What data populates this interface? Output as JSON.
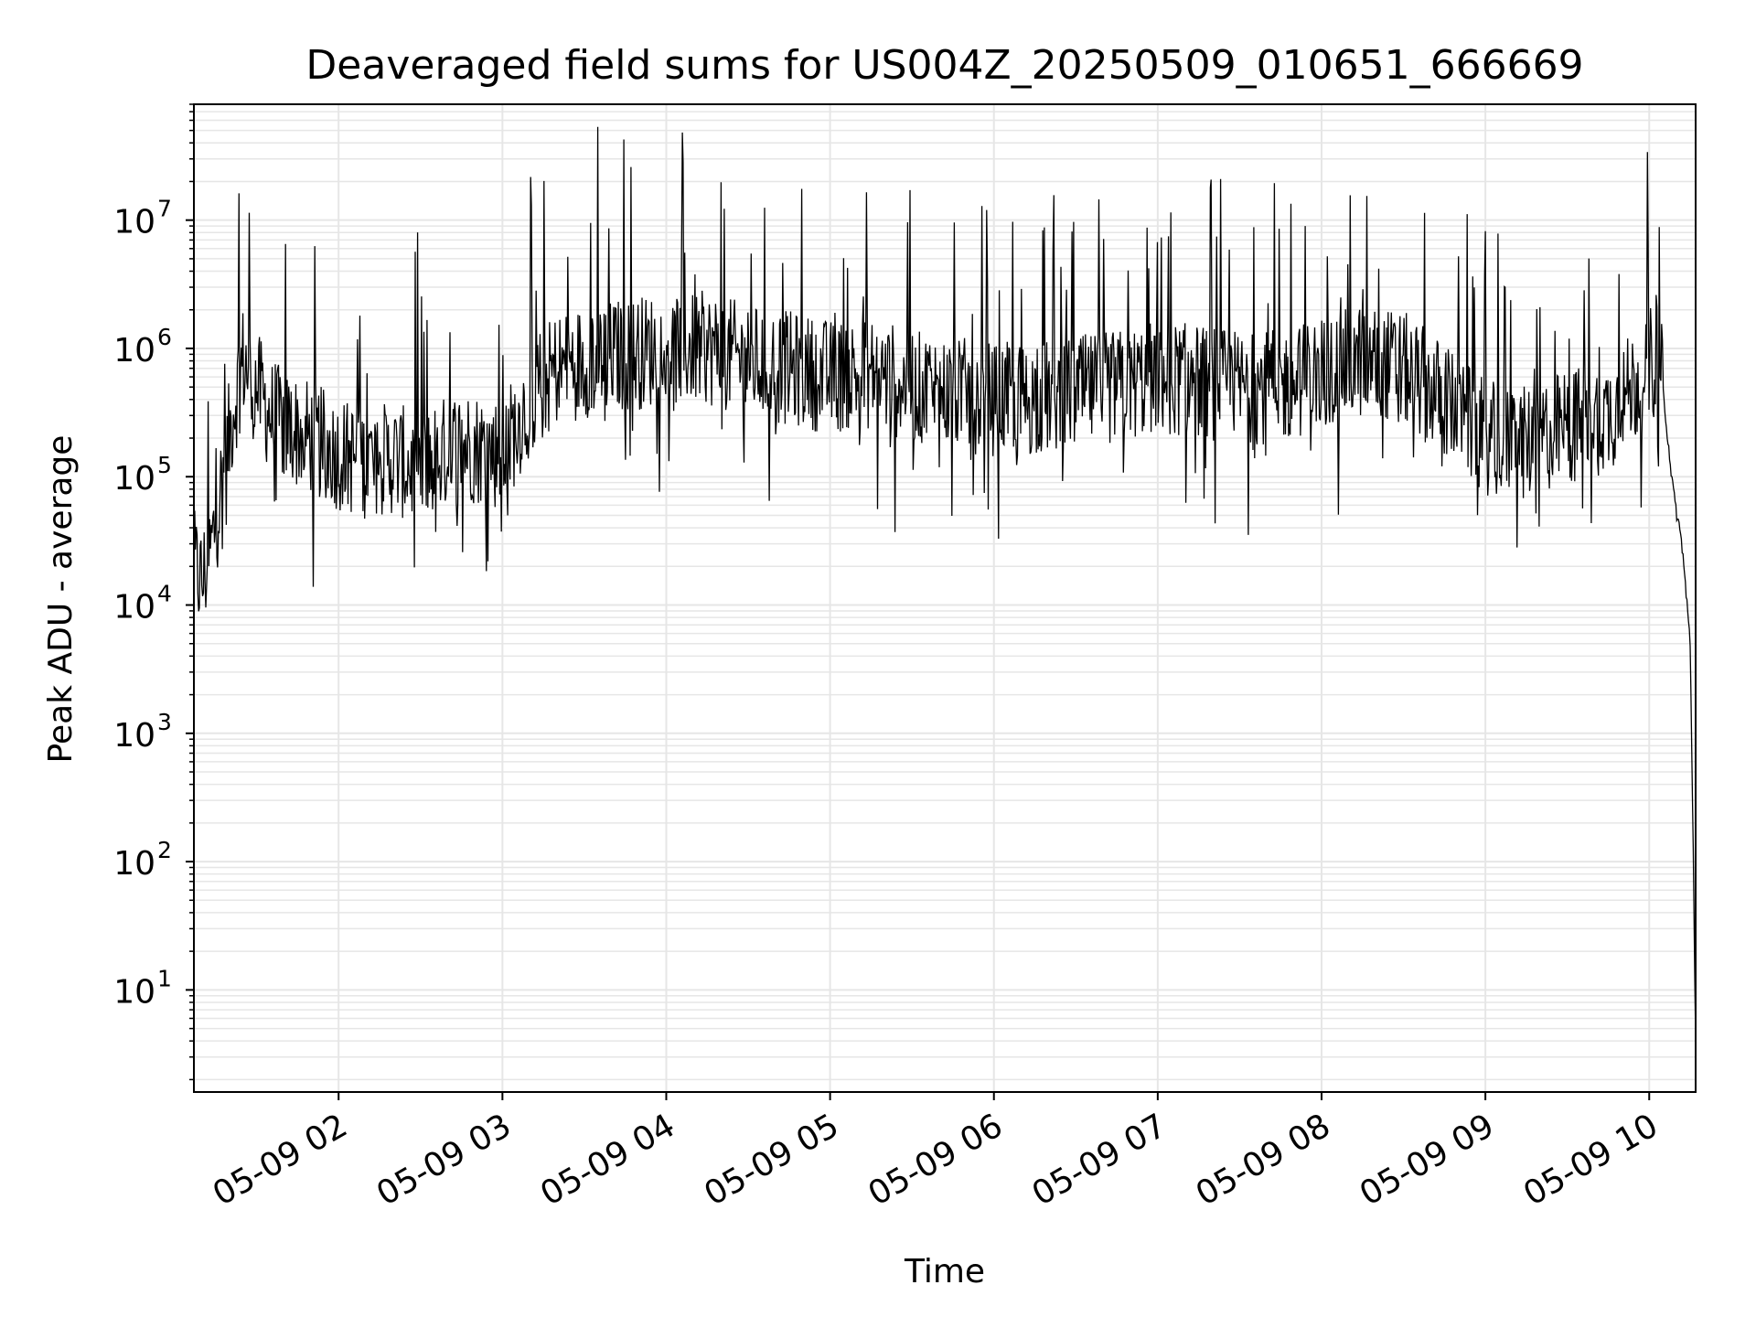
{
  "chart_data": {
    "type": "line",
    "title": "Deaveraged field sums for US004Z_20250509_010651_666669",
    "xlabel": "Time",
    "ylabel": "Peak ADU - average",
    "yscale": "log",
    "ylim": [
      1.6,
      80000000
    ],
    "xlim": [
      "2025-05-09 01:07",
      "2025-05-09 10:17"
    ],
    "grid": {
      "major": true,
      "minor": true,
      "color": "#e6e6e6"
    },
    "line_color": "#000000",
    "x_ticks": [
      {
        "label": "05-09 02",
        "time": "2025-05-09 02:00"
      },
      {
        "label": "05-09 03",
        "time": "2025-05-09 03:00"
      },
      {
        "label": "05-09 04",
        "time": "2025-05-09 04:00"
      },
      {
        "label": "05-09 05",
        "time": "2025-05-09 05:00"
      },
      {
        "label": "05-09 06",
        "time": "2025-05-09 06:00"
      },
      {
        "label": "05-09 07",
        "time": "2025-05-09 07:00"
      },
      {
        "label": "05-09 08",
        "time": "2025-05-09 08:00"
      },
      {
        "label": "05-09 09",
        "time": "2025-05-09 09:00"
      },
      {
        "label": "05-09 10",
        "time": "2025-05-09 10:00"
      }
    ],
    "y_ticks": [
      {
        "base": "10",
        "exp": "1",
        "value": 10
      },
      {
        "base": "10",
        "exp": "2",
        "value": 100
      },
      {
        "base": "10",
        "exp": "3",
        "value": 1000
      },
      {
        "base": "10",
        "exp": "4",
        "value": 10000
      },
      {
        "base": "10",
        "exp": "5",
        "value": 100000
      },
      {
        "base": "10",
        "exp": "6",
        "value": 1000000
      },
      {
        "base": "10",
        "exp": "7",
        "value": 10000000
      }
    ],
    "series": [
      {
        "x": [
          "2025-05-09 01:07",
          "2025-05-09 01:10",
          "2025-05-09 01:13",
          "2025-05-09 01:16",
          "2025-05-09 01:19",
          "2025-05-09 01:22",
          "2025-05-09 01:25",
          "2025-05-09 01:30",
          "2025-05-09 01:35",
          "2025-05-09 01:40",
          "2025-05-09 01:50",
          "2025-05-09 02:00",
          "2025-05-09 02:10",
          "2025-05-09 02:20",
          "2025-05-09 02:30",
          "2025-05-09 02:38",
          "2025-05-09 02:45",
          "2025-05-09 02:55",
          "2025-05-09 03:00",
          "2025-05-09 03:10",
          "2025-05-09 03:20",
          "2025-05-09 03:30",
          "2025-05-09 03:45",
          "2025-05-09 04:00",
          "2025-05-09 04:15",
          "2025-05-09 04:30",
          "2025-05-09 04:45",
          "2025-05-09 05:00",
          "2025-05-09 05:15",
          "2025-05-09 05:30",
          "2025-05-09 05:45",
          "2025-05-09 06:00",
          "2025-05-09 06:15",
          "2025-05-09 06:30",
          "2025-05-09 06:45",
          "2025-05-09 07:00",
          "2025-05-09 07:15",
          "2025-05-09 07:30",
          "2025-05-09 07:45",
          "2025-05-09 08:00",
          "2025-05-09 08:15",
          "2025-05-09 08:30",
          "2025-05-09 08:45",
          "2025-05-09 09:00",
          "2025-05-09 09:15",
          "2025-05-09 09:30",
          "2025-05-09 09:45",
          "2025-05-09 10:00",
          "2025-05-09 10:03",
          "2025-05-09 10:06",
          "2025-05-09 10:09",
          "2025-05-09 10:12",
          "2025-05-09 10:15",
          "2025-05-09 10:16",
          "2025-05-09 10:17"
        ],
        "y": [
          20000,
          15000,
          25000,
          60000,
          150000,
          400000,
          800000,
          500000,
          300000,
          250000,
          200000,
          150000,
          130000,
          140000,
          110000,
          150000,
          180000,
          160000,
          150000,
          400000,
          700000,
          800000,
          900000,
          1000000,
          1000000,
          800000,
          700000,
          600000,
          650000,
          500000,
          450000,
          400000,
          400000,
          450000,
          500000,
          600000,
          550000,
          500000,
          500000,
          650000,
          800000,
          700000,
          400000,
          200000,
          180000,
          250000,
          300000,
          700000,
          1100000,
          300000,
          70000,
          30000,
          5000,
          200,
          4
        ]
      }
    ]
  }
}
